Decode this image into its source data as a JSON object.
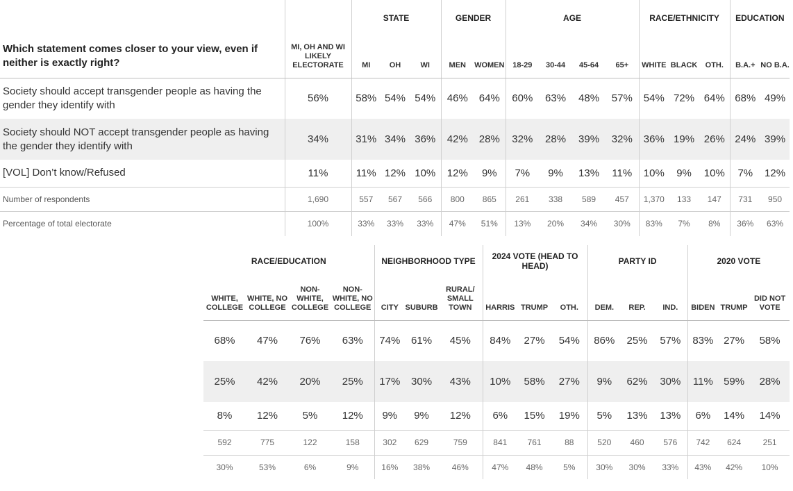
{
  "top": {
    "question": "Which statement comes closer to your view, even if neither is exactly right?",
    "total_label": "MI, OH AND WI LIKELY ELECTORATE",
    "groups": [
      "STATE",
      "GENDER",
      "AGE",
      "RACE/ETHNICITY",
      "EDUCATION"
    ],
    "cols": [
      "MI",
      "OH",
      "WI",
      "MEN",
      "WOMEN",
      "18-29",
      "30-44",
      "45-64",
      "65+",
      "WHITE",
      "BLACK",
      "OTH.",
      "B.A.+",
      "NO B.A."
    ],
    "rows": [
      {
        "label": "Society should accept transgender people as having the gender they identify with",
        "total": "56%",
        "values": [
          "58%",
          "54%",
          "54%",
          "46%",
          "64%",
          "60%",
          "63%",
          "48%",
          "57%",
          "54%",
          "72%",
          "64%",
          "68%",
          "49%"
        ]
      },
      {
        "label": "Society should NOT accept transgender people as having the gender they identify with",
        "total": "34%",
        "values": [
          "31%",
          "34%",
          "36%",
          "42%",
          "28%",
          "32%",
          "28%",
          "39%",
          "32%",
          "36%",
          "19%",
          "26%",
          "24%",
          "39%"
        ]
      },
      {
        "label": "[VOL] Don’t know/Refused",
        "total": "11%",
        "values": [
          "11%",
          "12%",
          "10%",
          "12%",
          "9%",
          "7%",
          "9%",
          "13%",
          "11%",
          "10%",
          "9%",
          "10%",
          "7%",
          "12%"
        ]
      }
    ],
    "respondents": {
      "label": "Number of respondents",
      "total": "1,690",
      "values": [
        "557",
        "567",
        "566",
        "800",
        "865",
        "261",
        "338",
        "589",
        "457",
        "1,370",
        "133",
        "147",
        "731",
        "950"
      ]
    },
    "share": {
      "label": "Percentage of total electorate",
      "total": "100%",
      "values": [
        "33%",
        "33%",
        "33%",
        "47%",
        "51%",
        "13%",
        "20%",
        "34%",
        "30%",
        "83%",
        "7%",
        "8%",
        "36%",
        "63%"
      ]
    }
  },
  "bottom": {
    "groups": [
      "RACE/EDUCATION",
      "NEIGHBORHOOD TYPE",
      "2024 VOTE (HEAD TO HEAD)",
      "PARTY ID",
      "2020 VOTE"
    ],
    "cols": [
      "WHITE, COLLEGE",
      "WHITE, NO COLLEGE",
      "NON-WHITE, COLLEGE",
      "NON-WHITE, NO COLLEGE",
      "CITY",
      "SUBURB",
      "RURAL/ SMALL TOWN",
      "HARRIS",
      "TRUMP",
      "OTH.",
      "DEM.",
      "REP.",
      "IND.",
      "BIDEN",
      "TRUMP",
      "DID NOT VOTE"
    ],
    "rows": [
      {
        "values": [
          "68%",
          "47%",
          "76%",
          "63%",
          "74%",
          "61%",
          "45%",
          "84%",
          "27%",
          "54%",
          "86%",
          "25%",
          "57%",
          "83%",
          "27%",
          "58%"
        ]
      },
      {
        "values": [
          "25%",
          "42%",
          "20%",
          "25%",
          "17%",
          "30%",
          "43%",
          "10%",
          "58%",
          "27%",
          "9%",
          "62%",
          "30%",
          "11%",
          "59%",
          "28%"
        ]
      },
      {
        "values": [
          "8%",
          "12%",
          "5%",
          "12%",
          "9%",
          "9%",
          "12%",
          "6%",
          "15%",
          "19%",
          "5%",
          "13%",
          "13%",
          "6%",
          "14%",
          "14%"
        ]
      }
    ],
    "respondents": [
      "592",
      "775",
      "122",
      "158",
      "302",
      "629",
      "759",
      "841",
      "761",
      "88",
      "520",
      "460",
      "576",
      "742",
      "624",
      "251"
    ],
    "share": [
      "30%",
      "53%",
      "6%",
      "9%",
      "16%",
      "38%",
      "46%",
      "47%",
      "48%",
      "5%",
      "30%",
      "30%",
      "33%",
      "43%",
      "42%",
      "10%"
    ]
  }
}
